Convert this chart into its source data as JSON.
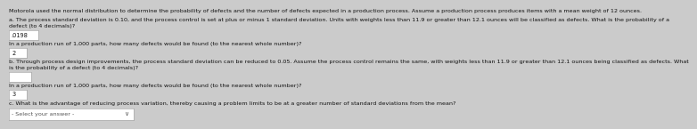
{
  "bg_color": "#cbcbcb",
  "white": "#ffffff",
  "title": "Motorola used the normal distribution to determine the probability of defects and the number of defects expected in a production process. Assume a production process produces items with a mean weight of 12 ounces.",
  "a_text1": "a. The process standard deviation is 0.10, and the process control is set at plus or minus 1 standard deviation. Units with weights less than 11.9 or greater than 12.1 ounces will be classified as defects. What is the probability of a",
  "a_text2": "defect (to 4 decimals)?",
  "answer_a1": ".0198",
  "run_a": "In a production run of 1,000 parts, how many defects would be found (to the nearest whole number)?",
  "answer_a2": "2",
  "b_text1": "b. Through process design improvements, the process standard deviation can be reduced to 0.05. Assume the process control remains the same, with weights less than 11.9 or greater than 12.1 ounces being classified as defects. What",
  "b_text2": "is the probability of a defect (to 4 decimals)?",
  "answer_b1": "",
  "run_b": "In a production run of 1,000 parts, how many defects would be found (to the nearest whole number)?",
  "answer_b2": "3",
  "c_text": "c. What is the advantage of reducing process variation, thereby causing a problem limits to be at a greater number of standard deviations from the mean?",
  "dropdown": "- Select your answer -",
  "fs": 4.8,
  "tc": "#111111",
  "box_color": "#e8e8e8",
  "box_edge": "#aaaaaa"
}
